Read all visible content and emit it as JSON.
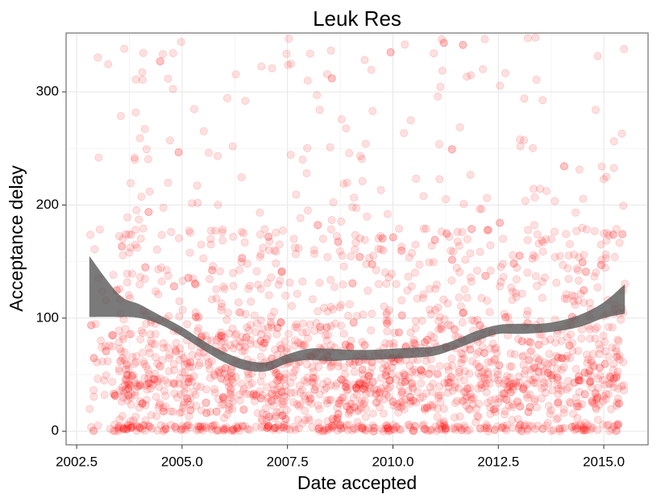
{
  "chart_data": {
    "type": "scatter",
    "title": "Leuk Res",
    "xlabel": "Date accepted",
    "ylabel": "Acceptance delay",
    "xlim": [
      2002.25,
      2016.05
    ],
    "ylim": [
      -12,
      352
    ],
    "x_ticks": [
      2002.5,
      2005.0,
      2007.5,
      2010.0,
      2012.5,
      2015.0
    ],
    "x_tick_labels": [
      "2002.5",
      "2005.0",
      "2007.5",
      "2010.0",
      "2012.5",
      "2015.0"
    ],
    "y_ticks": [
      0,
      100,
      200,
      300
    ],
    "y_tick_labels": [
      "0",
      "100",
      "200",
      "300"
    ],
    "grid": true,
    "x_range": [
      2002.8,
      2015.5
    ],
    "point_color": "#ff0000",
    "point_alpha": 0.12,
    "point_count": 2200,
    "smooth": {
      "x": [
        2002.8,
        2003.5,
        2004.0,
        2004.5,
        2005.0,
        2005.5,
        2006.0,
        2006.5,
        2007.0,
        2007.5,
        2008.0,
        2008.5,
        2009.0,
        2009.5,
        2010.0,
        2010.5,
        2011.0,
        2011.5,
        2012.0,
        2012.5,
        2013.0,
        2013.5,
        2014.0,
        2014.5,
        2015.0,
        2015.5
      ],
      "lower": [
        101,
        101,
        100,
        94,
        84,
        72,
        61,
        54,
        53,
        60,
        63,
        62,
        63,
        63,
        64,
        65,
        67,
        73,
        80,
        86,
        86,
        87,
        89,
        93,
        100,
        104
      ],
      "upper": [
        155,
        121,
        112,
        102,
        92,
        80,
        70,
        63,
        61,
        68,
        73,
        73,
        72,
        72,
        73,
        74,
        75,
        81,
        89,
        94,
        95,
        95,
        98,
        104,
        114,
        130
      ]
    },
    "ribbon_color": "#595959",
    "ribbon_opacity": 0.55
  }
}
